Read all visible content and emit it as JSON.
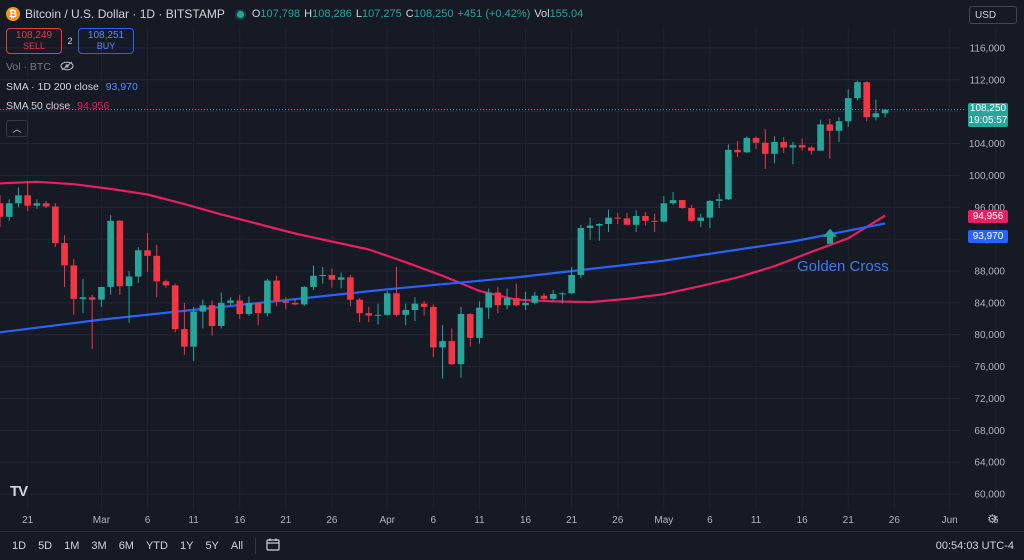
{
  "header": {
    "title": "Bitcoin / U.S. Dollar · 1D · BITSTAMP",
    "ohlc": [
      {
        "k": "O",
        "v": "107,798"
      },
      {
        "k": "H",
        "v": "108,286"
      },
      {
        "k": "L",
        "v": "107,275"
      },
      {
        "k": "C",
        "v": "108,250"
      },
      {
        "k": "",
        "v": "+451 (+0.42%)"
      },
      {
        "k": "Vol",
        "v": "155.04"
      }
    ]
  },
  "trade": {
    "sell_price": "108,249",
    "sell_label": "SELL",
    "spread": "2",
    "buy_price": "108,251",
    "buy_label": "BUY"
  },
  "legend": {
    "vol": "Vol · BTC",
    "sma200_label": "SMA · 1D 200 close",
    "sma200_value": "93,970",
    "sma50_label": "SMA 50 close",
    "sma50_value": "94,956"
  },
  "currency": "USD",
  "price_tag": {
    "price": "108,250",
    "countdown": "19:05:57"
  },
  "sma_tags": {
    "sma50": "94,956",
    "sma200": "93,970"
  },
  "annotation": "Golden Cross",
  "logo": "TV",
  "timeframes": [
    "1D",
    "5D",
    "1M",
    "3M",
    "6M",
    "YTD",
    "1Y",
    "5Y",
    "All"
  ],
  "clock": "00:54:03 UTC-4",
  "colors": {
    "up": "#26a69a",
    "down": "#f23645",
    "sma50": "#e91e63",
    "sma200": "#2962ff",
    "accent": "#2962ff"
  },
  "icons": {
    "coin": "bitcoin-icon",
    "eye": "eye-icon",
    "calendar": "calendar-icon",
    "settings": "gear-icon",
    "arrow": "up-arrow-icon"
  },
  "chart_data": {
    "type": "candlestick",
    "y_ticks": [
      60000,
      64000,
      68000,
      72000,
      76000,
      80000,
      84000,
      88000,
      92000,
      96000,
      100000,
      104000,
      108000,
      112000,
      116000
    ],
    "y_tick_labels": [
      "60,000",
      "64,000",
      "68,000",
      "72,000",
      "76,000",
      "80,000",
      "84,000",
      "88,000",
      "92,000",
      "96,000",
      "100,000",
      "104,000",
      "108,000",
      "112,000",
      "116,000"
    ],
    "ylim": [
      58000,
      118500
    ],
    "x_start": "2025-02-18",
    "x_ticks": [
      {
        "date": "2025-02-21",
        "label": "21"
      },
      {
        "date": "2025-03-01",
        "label": "Mar"
      },
      {
        "date": "2025-03-06",
        "label": "6"
      },
      {
        "date": "2025-03-11",
        "label": "11"
      },
      {
        "date": "2025-03-16",
        "label": "16"
      },
      {
        "date": "2025-03-21",
        "label": "21"
      },
      {
        "date": "2025-03-26",
        "label": "26"
      },
      {
        "date": "2025-04-01",
        "label": "Apr"
      },
      {
        "date": "2025-04-06",
        "label": "6"
      },
      {
        "date": "2025-04-11",
        "label": "11"
      },
      {
        "date": "2025-04-16",
        "label": "16"
      },
      {
        "date": "2025-04-21",
        "label": "21"
      },
      {
        "date": "2025-04-26",
        "label": "26"
      },
      {
        "date": "2025-05-01",
        "label": "May"
      },
      {
        "date": "2025-05-06",
        "label": "6"
      },
      {
        "date": "2025-05-11",
        "label": "11"
      },
      {
        "date": "2025-05-16",
        "label": "16"
      },
      {
        "date": "2025-05-21",
        "label": "21"
      },
      {
        "date": "2025-05-26",
        "label": "26"
      },
      {
        "date": "2025-06-01",
        "label": "Jun"
      },
      {
        "date": "2025-06-06",
        "label": "6"
      }
    ],
    "candles": [
      {
        "d": "2025-02-18",
        "o": 96500,
        "h": 97500,
        "l": 93500,
        "c": 94800
      },
      {
        "d": "2025-02-19",
        "o": 94800,
        "h": 97000,
        "l": 94300,
        "c": 96500
      },
      {
        "d": "2025-02-20",
        "o": 96500,
        "h": 98500,
        "l": 96000,
        "c": 97500
      },
      {
        "d": "2025-02-21",
        "o": 97500,
        "h": 99300,
        "l": 95500,
        "c": 96200
      },
      {
        "d": "2025-02-22",
        "o": 96200,
        "h": 97000,
        "l": 95800,
        "c": 96500
      },
      {
        "d": "2025-02-23",
        "o": 96500,
        "h": 96800,
        "l": 95900,
        "c": 96100
      },
      {
        "d": "2025-02-24",
        "o": 96100,
        "h": 96500,
        "l": 91000,
        "c": 91500
      },
      {
        "d": "2025-02-25",
        "o": 91500,
        "h": 92500,
        "l": 86000,
        "c": 88700
      },
      {
        "d": "2025-02-26",
        "o": 88700,
        "h": 89500,
        "l": 82500,
        "c": 84500
      },
      {
        "d": "2025-02-27",
        "o": 84500,
        "h": 87000,
        "l": 82700,
        "c": 84700
      },
      {
        "d": "2025-02-28",
        "o": 84700,
        "h": 85000,
        "l": 78200,
        "c": 84400
      },
      {
        "d": "2025-03-01",
        "o": 84400,
        "h": 86000,
        "l": 83500,
        "c": 86000
      },
      {
        "d": "2025-03-02",
        "o": 86000,
        "h": 95000,
        "l": 85000,
        "c": 94300
      },
      {
        "d": "2025-03-03",
        "o": 94300,
        "h": 94400,
        "l": 85000,
        "c": 86100
      },
      {
        "d": "2025-03-04",
        "o": 86100,
        "h": 88000,
        "l": 81500,
        "c": 87300
      },
      {
        "d": "2025-03-05",
        "o": 87300,
        "h": 91000,
        "l": 86500,
        "c": 90600
      },
      {
        "d": "2025-03-06",
        "o": 90600,
        "h": 92800,
        "l": 87900,
        "c": 89900
      },
      {
        "d": "2025-03-07",
        "o": 89900,
        "h": 91300,
        "l": 84700,
        "c": 86700
      },
      {
        "d": "2025-03-08",
        "o": 86700,
        "h": 86900,
        "l": 85900,
        "c": 86200
      },
      {
        "d": "2025-03-09",
        "o": 86200,
        "h": 86400,
        "l": 80300,
        "c": 80700
      },
      {
        "d": "2025-03-10",
        "o": 80700,
        "h": 84000,
        "l": 77500,
        "c": 78500
      },
      {
        "d": "2025-03-11",
        "o": 78500,
        "h": 83500,
        "l": 76700,
        "c": 82900
      },
      {
        "d": "2025-03-12",
        "o": 82900,
        "h": 84400,
        "l": 80800,
        "c": 83700
      },
      {
        "d": "2025-03-13",
        "o": 83700,
        "h": 84300,
        "l": 79900,
        "c": 81100
      },
      {
        "d": "2025-03-14",
        "o": 81100,
        "h": 85300,
        "l": 80800,
        "c": 84000
      },
      {
        "d": "2025-03-15",
        "o": 84000,
        "h": 84700,
        "l": 83700,
        "c": 84300
      },
      {
        "d": "2025-03-16",
        "o": 84300,
        "h": 85000,
        "l": 82000,
        "c": 82600
      },
      {
        "d": "2025-03-17",
        "o": 82600,
        "h": 84800,
        "l": 82400,
        "c": 84000
      },
      {
        "d": "2025-03-18",
        "o": 84000,
        "h": 84000,
        "l": 81200,
        "c": 82700
      },
      {
        "d": "2025-03-19",
        "o": 82700,
        "h": 87000,
        "l": 82300,
        "c": 86800
      },
      {
        "d": "2025-03-20",
        "o": 86800,
        "h": 87400,
        "l": 83600,
        "c": 84200
      },
      {
        "d": "2025-03-21",
        "o": 84200,
        "h": 84700,
        "l": 83200,
        "c": 84000
      },
      {
        "d": "2025-03-22",
        "o": 84000,
        "h": 84500,
        "l": 83700,
        "c": 83800
      },
      {
        "d": "2025-03-23",
        "o": 83800,
        "h": 86100,
        "l": 83600,
        "c": 86000
      },
      {
        "d": "2025-03-24",
        "o": 86000,
        "h": 88700,
        "l": 85600,
        "c": 87400
      },
      {
        "d": "2025-03-25",
        "o": 87400,
        "h": 88500,
        "l": 86400,
        "c": 87500
      },
      {
        "d": "2025-03-26",
        "o": 87500,
        "h": 88300,
        "l": 85900,
        "c": 86900
      },
      {
        "d": "2025-03-27",
        "o": 86900,
        "h": 87800,
        "l": 85800,
        "c": 87200
      },
      {
        "d": "2025-03-28",
        "o": 87200,
        "h": 87500,
        "l": 83600,
        "c": 84400
      },
      {
        "d": "2025-03-29",
        "o": 84400,
        "h": 84600,
        "l": 81600,
        "c": 82700
      },
      {
        "d": "2025-03-30",
        "o": 82700,
        "h": 83500,
        "l": 81600,
        "c": 82400
      },
      {
        "d": "2025-03-31",
        "o": 82400,
        "h": 83900,
        "l": 81300,
        "c": 82500
      },
      {
        "d": "2025-04-01",
        "o": 82500,
        "h": 85500,
        "l": 82400,
        "c": 85200
      },
      {
        "d": "2025-04-02",
        "o": 85200,
        "h": 88500,
        "l": 82300,
        "c": 82500
      },
      {
        "d": "2025-04-03",
        "o": 82500,
        "h": 83900,
        "l": 81200,
        "c": 83100
      },
      {
        "d": "2025-04-04",
        "o": 83100,
        "h": 84700,
        "l": 81700,
        "c": 83900
      },
      {
        "d": "2025-04-05",
        "o": 83900,
        "h": 84200,
        "l": 82400,
        "c": 83500
      },
      {
        "d": "2025-04-06",
        "o": 83500,
        "h": 83800,
        "l": 77200,
        "c": 78400
      },
      {
        "d": "2025-04-07",
        "o": 78400,
        "h": 81200,
        "l": 74500,
        "c": 79200
      },
      {
        "d": "2025-04-08",
        "o": 79200,
        "h": 80800,
        "l": 76200,
        "c": 76300
      },
      {
        "d": "2025-04-09",
        "o": 76300,
        "h": 83500,
        "l": 74600,
        "c": 82600
      },
      {
        "d": "2025-04-10",
        "o": 82600,
        "h": 82700,
        "l": 78500,
        "c": 79600
      },
      {
        "d": "2025-04-11",
        "o": 79600,
        "h": 84200,
        "l": 78900,
        "c": 83400
      },
      {
        "d": "2025-04-12",
        "o": 83400,
        "h": 85800,
        "l": 82000,
        "c": 85300
      },
      {
        "d": "2025-04-13",
        "o": 85300,
        "h": 86000,
        "l": 82700,
        "c": 83700
      },
      {
        "d": "2025-04-14",
        "o": 83700,
        "h": 85800,
        "l": 83200,
        "c": 84600
      },
      {
        "d": "2025-04-15",
        "o": 84600,
        "h": 86400,
        "l": 83600,
        "c": 83700
      },
      {
        "d": "2025-04-16",
        "o": 83700,
        "h": 85400,
        "l": 83100,
        "c": 84000
      },
      {
        "d": "2025-04-17",
        "o": 84000,
        "h": 85400,
        "l": 83800,
        "c": 84900
      },
      {
        "d": "2025-04-18",
        "o": 84900,
        "h": 85200,
        "l": 84300,
        "c": 84500
      },
      {
        "d": "2025-04-19",
        "o": 84500,
        "h": 85600,
        "l": 84300,
        "c": 85100
      },
      {
        "d": "2025-04-20",
        "o": 85100,
        "h": 85300,
        "l": 83900,
        "c": 85200
      },
      {
        "d": "2025-04-21",
        "o": 85200,
        "h": 88500,
        "l": 85100,
        "c": 87500
      },
      {
        "d": "2025-04-22",
        "o": 87500,
        "h": 93800,
        "l": 87100,
        "c": 93400
      },
      {
        "d": "2025-04-23",
        "o": 93400,
        "h": 94700,
        "l": 91900,
        "c": 93700
      },
      {
        "d": "2025-04-24",
        "o": 93700,
        "h": 94000,
        "l": 91800,
        "c": 93900
      },
      {
        "d": "2025-04-25",
        "o": 93900,
        "h": 95700,
        "l": 92900,
        "c": 94700
      },
      {
        "d": "2025-04-26",
        "o": 94700,
        "h": 95300,
        "l": 93900,
        "c": 94600
      },
      {
        "d": "2025-04-27",
        "o": 94600,
        "h": 95300,
        "l": 93700,
        "c": 93800
      },
      {
        "d": "2025-04-28",
        "o": 93800,
        "h": 95600,
        "l": 92900,
        "c": 94900
      },
      {
        "d": "2025-04-29",
        "o": 94900,
        "h": 95400,
        "l": 93700,
        "c": 94300
      },
      {
        "d": "2025-04-30",
        "o": 94300,
        "h": 95200,
        "l": 92900,
        "c": 94200
      },
      {
        "d": "2025-05-01",
        "o": 94200,
        "h": 97400,
        "l": 94100,
        "c": 96500
      },
      {
        "d": "2025-05-02",
        "o": 96500,
        "h": 97900,
        "l": 96300,
        "c": 96900
      },
      {
        "d": "2025-05-03",
        "o": 96900,
        "h": 96900,
        "l": 95800,
        "c": 95900
      },
      {
        "d": "2025-05-04",
        "o": 95900,
        "h": 96300,
        "l": 94200,
        "c": 94300
      },
      {
        "d": "2025-05-05",
        "o": 94300,
        "h": 95200,
        "l": 93500,
        "c": 94700
      },
      {
        "d": "2025-05-06",
        "o": 94700,
        "h": 96900,
        "l": 93400,
        "c": 96800
      },
      {
        "d": "2025-05-07",
        "o": 96800,
        "h": 97700,
        "l": 95900,
        "c": 97000
      },
      {
        "d": "2025-05-08",
        "o": 97000,
        "h": 103900,
        "l": 96900,
        "c": 103200
      },
      {
        "d": "2025-05-09",
        "o": 103200,
        "h": 104300,
        "l": 102300,
        "c": 102900
      },
      {
        "d": "2025-05-10",
        "o": 102900,
        "h": 104900,
        "l": 102800,
        "c": 104700
      },
      {
        "d": "2025-05-11",
        "o": 104700,
        "h": 104900,
        "l": 103300,
        "c": 104100
      },
      {
        "d": "2025-05-12",
        "o": 104100,
        "h": 105800,
        "l": 100800,
        "c": 102700
      },
      {
        "d": "2025-05-13",
        "o": 102700,
        "h": 104900,
        "l": 101500,
        "c": 104200
      },
      {
        "d": "2025-05-14",
        "o": 104200,
        "h": 104800,
        "l": 102800,
        "c": 103500
      },
      {
        "d": "2025-05-15",
        "o": 103500,
        "h": 104200,
        "l": 101400,
        "c": 103800
      },
      {
        "d": "2025-05-16",
        "o": 103800,
        "h": 104600,
        "l": 103100,
        "c": 103500
      },
      {
        "d": "2025-05-17",
        "o": 103500,
        "h": 103700,
        "l": 102600,
        "c": 103100
      },
      {
        "d": "2025-05-18",
        "o": 103100,
        "h": 107000,
        "l": 103100,
        "c": 106400
      },
      {
        "d": "2025-05-19",
        "o": 106400,
        "h": 107100,
        "l": 102100,
        "c": 105600
      },
      {
        "d": "2025-05-20",
        "o": 105600,
        "h": 107300,
        "l": 104200,
        "c": 106800
      },
      {
        "d": "2025-05-21",
        "o": 106800,
        "h": 110800,
        "l": 106100,
        "c": 109700
      },
      {
        "d": "2025-05-22",
        "o": 109700,
        "h": 111900,
        "l": 109400,
        "c": 111700
      },
      {
        "d": "2025-05-23",
        "o": 111700,
        "h": 111800,
        "l": 106800,
        "c": 107300
      },
      {
        "d": "2025-05-24",
        "o": 107300,
        "h": 109500,
        "l": 106900,
        "c": 107800
      },
      {
        "d": "2025-05-25",
        "o": 107800,
        "h": 108300,
        "l": 107300,
        "c": 108250
      }
    ],
    "series": [
      {
        "name": "SMA 50 close",
        "color": "#e91e63",
        "points": [
          [
            "2025-02-18",
            99000
          ],
          [
            "2025-02-22",
            99200
          ],
          [
            "2025-02-26",
            98900
          ],
          [
            "2025-03-02",
            98300
          ],
          [
            "2025-03-06",
            97600
          ],
          [
            "2025-03-10",
            96400
          ],
          [
            "2025-03-14",
            95100
          ],
          [
            "2025-03-18",
            93900
          ],
          [
            "2025-03-22",
            92700
          ],
          [
            "2025-03-26",
            91700
          ],
          [
            "2025-03-30",
            90700
          ],
          [
            "2025-04-03",
            89100
          ],
          [
            "2025-04-07",
            87400
          ],
          [
            "2025-04-11",
            85500
          ],
          [
            "2025-04-15",
            84400
          ],
          [
            "2025-04-19",
            84200
          ],
          [
            "2025-04-23",
            84100
          ],
          [
            "2025-04-27",
            84500
          ],
          [
            "2025-05-01",
            85100
          ],
          [
            "2025-05-05",
            86100
          ],
          [
            "2025-05-09",
            87200
          ],
          [
            "2025-05-13",
            88600
          ],
          [
            "2025-05-17",
            90400
          ],
          [
            "2025-05-21",
            92100
          ],
          [
            "2025-05-25",
            94956
          ]
        ]
      },
      {
        "name": "SMA · 1D 200 close",
        "color": "#2962ff",
        "points": [
          [
            "2025-02-18",
            80300
          ],
          [
            "2025-03-01",
            81900
          ],
          [
            "2025-03-15",
            83600
          ],
          [
            "2025-04-01",
            85700
          ],
          [
            "2025-04-15",
            87200
          ],
          [
            "2025-05-01",
            89300
          ],
          [
            "2025-05-15",
            91700
          ],
          [
            "2025-05-25",
            93970
          ]
        ]
      }
    ]
  }
}
